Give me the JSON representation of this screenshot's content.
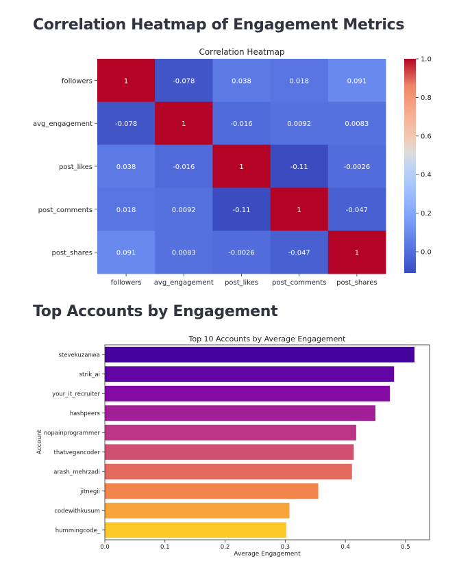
{
  "sections": {
    "heatmap_heading": "Correlation Heatmap of Engagement Metrics",
    "bar_heading": "Top Accounts by Engagement"
  },
  "chart_data": [
    {
      "type": "heatmap",
      "title": "Correlation Heatmap",
      "x_labels": [
        "followers",
        "avg_engagement",
        "post_likes",
        "post_comments",
        "post_shares"
      ],
      "y_labels": [
        "followers",
        "avg_engagement",
        "post_likes",
        "post_comments",
        "post_shares"
      ],
      "values": [
        [
          1,
          -0.078,
          0.038,
          0.018,
          0.091
        ],
        [
          -0.078,
          1,
          -0.016,
          0.0092,
          0.0083
        ],
        [
          0.038,
          -0.016,
          1,
          -0.11,
          -0.0026
        ],
        [
          0.018,
          0.0092,
          -0.11,
          1,
          -0.047
        ],
        [
          0.091,
          0.0083,
          -0.0026,
          -0.047,
          1
        ]
      ],
      "colormap": "coolwarm",
      "vmin": -0.11,
      "vmax": 1,
      "colorbar_ticks": [
        "0.0",
        "0.2",
        "0.4",
        "0.6",
        "0.8",
        "1.0"
      ]
    },
    {
      "type": "bar",
      "orientation": "horizontal",
      "title": "Top 10 Accounts by Average Engagement",
      "xlabel": "Average Engagement",
      "ylabel": "Account",
      "categories": [
        "stevekuzanwa",
        "strik_ai",
        "your_it_recruiter",
        "hashpeers",
        "nopainprogrammer",
        "thatvegancoder",
        "arash_mehrzadi",
        "jitnegii",
        "codewithkusum",
        "hummingcode_"
      ],
      "values": [
        0.515,
        0.481,
        0.474,
        0.45,
        0.418,
        0.414,
        0.411,
        0.355,
        0.307,
        0.302
      ],
      "xlim": [
        0,
        0.54
      ],
      "xticks": [
        "0.0",
        "0.1",
        "0.2",
        "0.3",
        "0.4",
        "0.5"
      ],
      "palette": "plasma"
    }
  ]
}
